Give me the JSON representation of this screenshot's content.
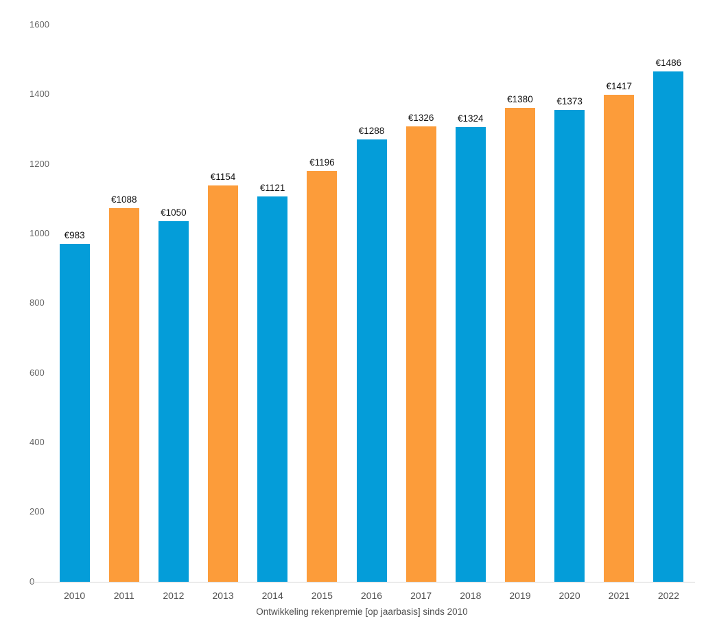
{
  "chart_data": {
    "type": "bar",
    "title": "Ontwikkeling rekenpremie [op jaarbasis] sinds 2010",
    "title_position": "bottom",
    "categories": [
      "2010",
      "2011",
      "2012",
      "2013",
      "2014",
      "2015",
      "2016",
      "2017",
      "2018",
      "2019",
      "2020",
      "2021",
      "2022"
    ],
    "values": [
      983,
      1088,
      1050,
      1154,
      1121,
      1196,
      1288,
      1326,
      1324,
      1380,
      1373,
      1417,
      1486
    ],
    "data_labels": [
      "€983",
      "€1088",
      "€1050",
      "€1154",
      "€1121",
      "€1196",
      "€1288",
      "€1326",
      "€1324",
      "€1380",
      "€1373",
      "€1417",
      "€1486"
    ],
    "currency_prefix": "€",
    "yticks": [
      0,
      200,
      400,
      600,
      800,
      1000,
      1200,
      1400,
      1600
    ],
    "ylim": [
      0,
      1600
    ],
    "xlabel": "",
    "ylabel": "",
    "grid": false,
    "legend": "none",
    "bar_palette_alternating": [
      "#049DD9",
      "#FC9C3A"
    ],
    "colors": {
      "bar_blue": "#049DD9",
      "bar_orange": "#FC9C3A",
      "axis_line": "#D6D6D6",
      "y_tick_label": "#666666",
      "x_tick_label": "#4F4F4F",
      "data_label": "#111111",
      "title": "#4F4F4F",
      "background": "#FFFFFF"
    }
  }
}
